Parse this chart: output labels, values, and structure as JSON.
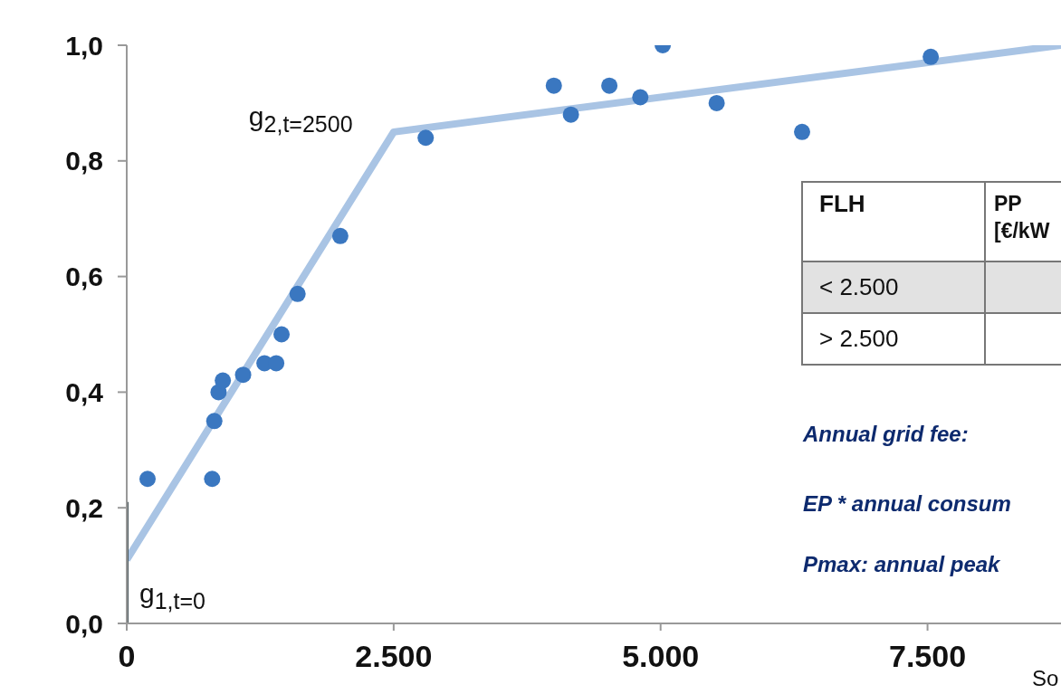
{
  "chart_data": {
    "type": "scatter",
    "series": [
      {
        "marker": "circle",
        "color": "#3a77c0",
        "x": [
          195,
          800,
          820,
          860,
          900,
          1090,
          1290,
          1400,
          1450,
          1600,
          2000,
          2800,
          4000,
          4160,
          4520,
          4810,
          5020,
          5525,
          6325,
          7530
        ],
        "values": [
          0.25,
          0.25,
          0.35,
          0.4,
          0.42,
          0.43,
          0.45,
          0.45,
          0.5,
          0.57,
          0.67,
          0.84,
          0.93,
          0.88,
          0.93,
          0.91,
          1.0,
          0.9,
          0.85,
          0.98
        ]
      },
      {
        "type": "line",
        "color": "#a9c4e4",
        "x": [
          0,
          2500,
          8750
        ],
        "values": [
          0.11,
          0.85,
          1.0
        ]
      },
      {
        "type": "line",
        "color": "#4d5a5e",
        "x": [
          0,
          0
        ],
        "values": [
          0,
          0.21
        ]
      }
    ],
    "xlim": [
      0,
      8750
    ],
    "ylim": [
      0,
      1.0
    ],
    "xticks": [
      0,
      {
        "value": 2500,
        "label": "2.500"
      },
      {
        "value": 5000,
        "label": "5.000"
      },
      {
        "value": 7500,
        "label": "7.500"
      }
    ],
    "yticks": [
      {
        "value": 0,
        "label": "0,0"
      },
      {
        "value": 0.2,
        "label": "0,2"
      },
      {
        "value": 0.4,
        "label": "0,4"
      },
      {
        "value": 0.6,
        "label": "0,6"
      },
      {
        "value": 0.8,
        "label": "0,8"
      },
      {
        "value": 1.0,
        "label": "1,0"
      }
    ],
    "grid": false,
    "annotations": [
      {
        "text": "g$_{2,t=2500}$",
        "x": 2500,
        "y": 0.85
      },
      {
        "text": "g$_{1,t=0}$",
        "x": 0,
        "y": 0
      },
      "FLH",
      "PP [€/kW",
      "< 2.500",
      "> 2.500",
      "Annual grid fee:",
      "EP * annual consum",
      "Pmax: annual peak",
      "So"
    ]
  }
}
